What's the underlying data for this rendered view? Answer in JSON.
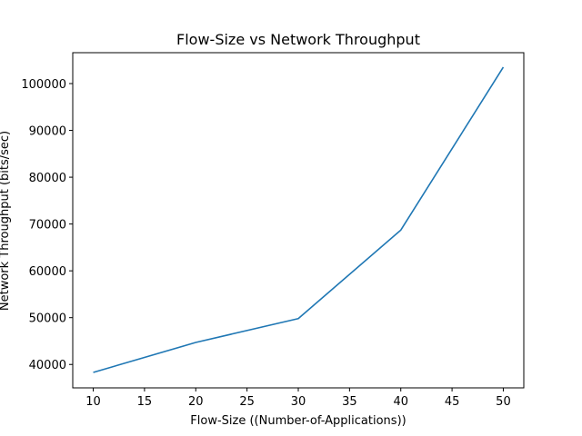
{
  "chart_data": {
    "type": "line",
    "title": "Flow-Size vs Network Throughput",
    "xlabel": "Flow-Size ((Number-of-Applications))",
    "ylabel": "Network Throughput (bits/sec)",
    "xlim": [
      8,
      52
    ],
    "ylim": [
      35000,
      106600
    ],
    "xticks": [
      10,
      15,
      20,
      25,
      30,
      35,
      40,
      45,
      50
    ],
    "xtick_labels": [
      "10",
      "15",
      "20",
      "25",
      "30",
      "35",
      "40",
      "45",
      "50"
    ],
    "yticks": [
      40000,
      50000,
      60000,
      70000,
      80000,
      90000,
      100000
    ],
    "ytick_labels": [
      "40000",
      "50000",
      "60000",
      "70000",
      "80000",
      "90000",
      "100000"
    ],
    "grid": false,
    "series": [
      {
        "color": "#1f77b4",
        "x": [
          10,
          20,
          30,
          40,
          50
        ],
        "y": [
          38300,
          44700,
          49800,
          68700,
          103500
        ]
      }
    ]
  }
}
